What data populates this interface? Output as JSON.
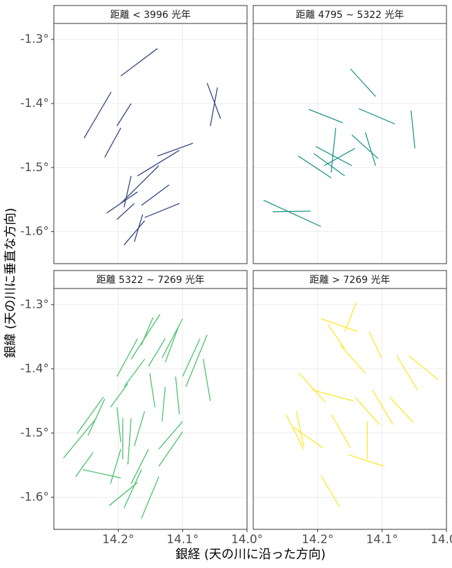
{
  "chart_data": {
    "type": "facet",
    "xlabel": "銀経 (天の川に沿った方向)",
    "ylabel": "銀緯 (天の川に垂直な方向)",
    "xlim": [
      14.3,
      14.0
    ],
    "ylim": [
      -1.65,
      -1.275
    ],
    "xticks": [
      {
        "value": 14.2,
        "label": "14.2°"
      },
      {
        "value": 14.1,
        "label": "14.1°"
      },
      {
        "value": 14.0,
        "label": "14.0°"
      }
    ],
    "yticks": [
      {
        "value": -1.3,
        "label": "-1.3°"
      },
      {
        "value": -1.4,
        "label": "-1.4°"
      },
      {
        "value": -1.5,
        "label": "-1.5°"
      },
      {
        "value": -1.6,
        "label": "-1.6°"
      }
    ],
    "grid": true,
    "panels": [
      {
        "type": "segment",
        "title": "距離 < 3996 光年",
        "color": "#35457f",
        "x": [
          14.196,
          14.211,
          14.18,
          14.196,
          14.062,
          14.046,
          14.084,
          14.105,
          14.137,
          14.17,
          14.121,
          14.105,
          14.175,
          14.159,
          14.162,
          14.18
        ],
        "y": [
          -1.357,
          -1.382,
          -1.4,
          -1.438,
          -1.368,
          -1.375,
          -1.462,
          -1.473,
          -1.497,
          -1.538,
          -1.527,
          -1.556,
          -1.556,
          -1.583,
          -1.573,
          -1.513
        ],
        "xend": [
          14.139,
          14.253,
          14.202,
          14.221,
          14.041,
          14.057,
          14.139,
          14.17,
          14.196,
          14.218,
          14.164,
          14.159,
          14.202,
          14.191,
          14.175,
          14.191
        ],
        "yend": [
          -1.314,
          -1.454,
          -1.435,
          -1.484,
          -1.424,
          -1.435,
          -1.482,
          -1.513,
          -1.556,
          -1.571,
          -1.559,
          -1.578,
          -1.581,
          -1.621,
          -1.616,
          -1.562
        ]
      },
      {
        "type": "segment",
        "title": "距離 4795 ~ 5322 光年",
        "color": "#1f968b",
        "x": [
          14.149,
          14.214,
          14.136,
          14.055,
          14.172,
          14.147,
          14.126,
          14.142,
          14.203,
          14.23,
          14.206,
          14.284,
          14.27
        ],
        "y": [
          -1.346,
          -1.409,
          -1.408,
          -1.411,
          -1.438,
          -1.449,
          -1.445,
          -1.47,
          -1.467,
          -1.482,
          -1.478,
          -1.551,
          -1.569
        ],
        "xend": [
          14.11,
          14.161,
          14.08,
          14.049,
          14.179,
          14.106,
          14.11,
          14.19,
          14.147,
          14.179,
          14.158,
          14.195,
          14.211
        ],
        "yend": [
          -1.389,
          -1.43,
          -1.432,
          -1.47,
          -1.508,
          -1.486,
          -1.497,
          -1.497,
          -1.497,
          -1.516,
          -1.513,
          -1.592,
          -1.568
        ]
      },
      {
        "type": "segment",
        "title": "距離 5322 ~ 7269 光年",
        "color": "#4ac16d",
        "x": [
          14.285,
          14.266,
          14.255,
          14.264,
          14.247,
          14.212,
          14.202,
          14.18,
          14.164,
          14.153,
          14.151,
          14.132,
          14.127,
          14.1,
          14.095,
          14.068,
          14.127,
          14.111,
          14.202,
          14.193,
          14.18,
          14.159,
          14.137,
          14.137,
          14.153,
          14.164,
          14.137,
          14.214,
          14.212,
          14.191
        ],
        "y": [
          -1.539,
          -1.568,
          -1.557,
          -1.501,
          -1.504,
          -1.46,
          -1.412,
          -1.385,
          -1.363,
          -1.396,
          -1.407,
          -1.383,
          -1.39,
          -1.412,
          -1.428,
          -1.385,
          -1.428,
          -1.412,
          -1.46,
          -1.477,
          -1.477,
          -1.466,
          -1.525,
          -1.552,
          -1.525,
          -1.557,
          -1.568,
          -1.613,
          -1.579,
          -1.428
        ],
        "xend": [
          14.234,
          14.239,
          14.196,
          14.223,
          14.221,
          14.185,
          14.17,
          14.135,
          14.146,
          14.127,
          14.143,
          14.1,
          14.107,
          14.073,
          14.062,
          14.057,
          14.132,
          14.105,
          14.196,
          14.193,
          14.185,
          14.175,
          14.1,
          14.1,
          14.18,
          14.191,
          14.164,
          14.17,
          14.196,
          14.159
        ],
        "yend": [
          -1.477,
          -1.53,
          -1.57,
          -1.444,
          -1.447,
          -1.423,
          -1.353,
          -1.315,
          -1.32,
          -1.353,
          -1.46,
          -1.322,
          -1.336,
          -1.353,
          -1.347,
          -1.45,
          -1.482,
          -1.471,
          -1.514,
          -1.541,
          -1.549,
          -1.52,
          -1.482,
          -1.498,
          -1.579,
          -1.617,
          -1.633,
          -1.577,
          -1.525,
          -1.385
        ]
      },
      {
        "type": "segment",
        "title": "距離 > 7269 光年",
        "color": "#fde725",
        "x": [
          14.195,
          14.158,
          14.184,
          14.165,
          14.12,
          14.077,
          14.058,
          14.229,
          14.208,
          14.142,
          14.115,
          14.088,
          14.249,
          14.233,
          14.238,
          14.179,
          14.123,
          14.152,
          14.195
        ],
        "y": [
          -1.322,
          -1.342,
          -1.331,
          -1.363,
          -1.342,
          -1.38,
          -1.38,
          -1.407,
          -1.433,
          -1.444,
          -1.433,
          -1.444,
          -1.471,
          -1.466,
          -1.491,
          -1.471,
          -1.482,
          -1.534,
          -1.566
        ],
        "xend": [
          14.138,
          14.14,
          14.158,
          14.126,
          14.101,
          14.045,
          14.013,
          14.188,
          14.145,
          14.104,
          14.083,
          14.051,
          14.222,
          14.222,
          14.192,
          14.149,
          14.123,
          14.096,
          14.166
        ],
        "yend": [
          -1.342,
          -1.297,
          -1.369,
          -1.407,
          -1.383,
          -1.433,
          -1.417,
          -1.452,
          -1.45,
          -1.487,
          -1.487,
          -1.484,
          -1.525,
          -1.52,
          -1.523,
          -1.523,
          -1.541,
          -1.552,
          -1.615
        ]
      }
    ]
  }
}
